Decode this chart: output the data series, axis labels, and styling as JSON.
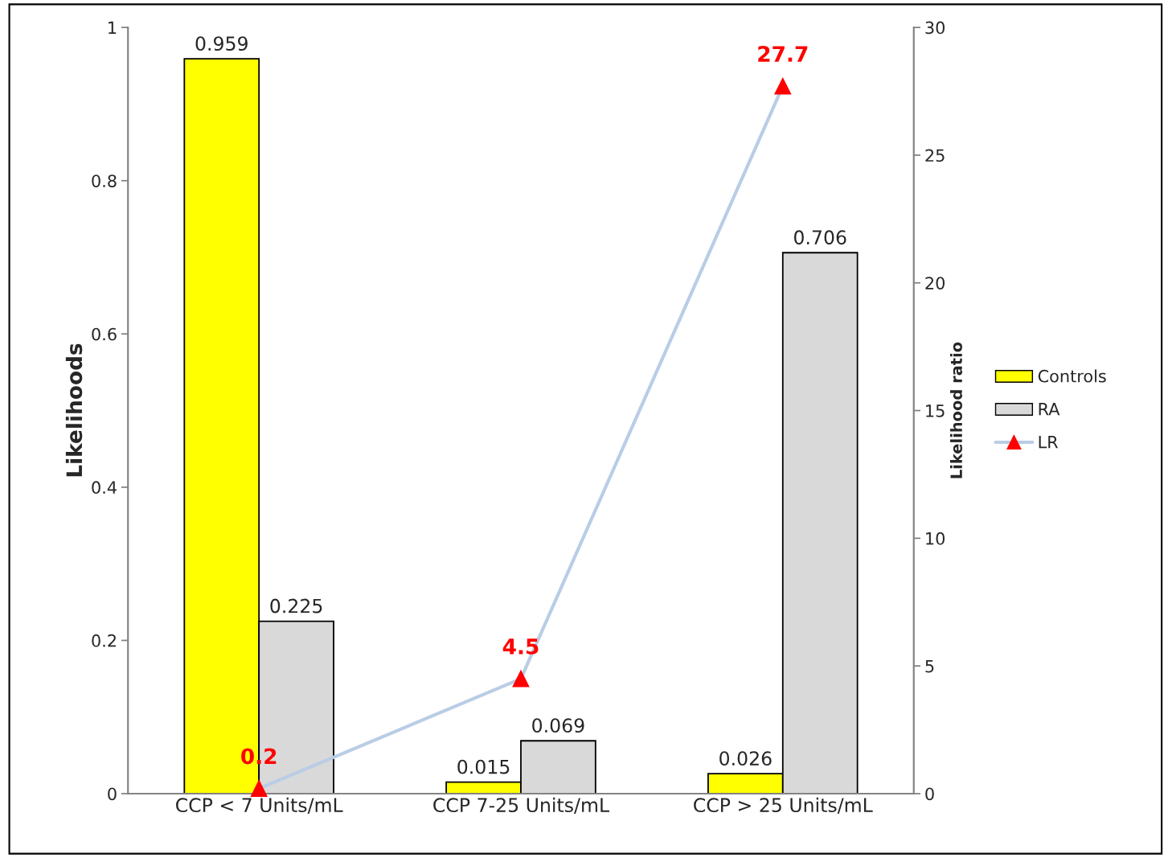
{
  "chart_data": {
    "type": "bar",
    "ylabel": "Likelihoods",
    "y2label": "Likelihood ratio",
    "categories": [
      "CCP < 7 Units/mL",
      "CCP 7-25 Units/mL",
      "CCP > 25 Units/mL"
    ],
    "series": [
      {
        "name": "Controls",
        "color": "#ffff00",
        "values": [
          0.959,
          0.015,
          0.026
        ]
      },
      {
        "name": "RA",
        "color": "#d9d9d9",
        "values": [
          0.225,
          0.069,
          0.706
        ]
      },
      {
        "name": "LR",
        "type": "line",
        "axis": "y2",
        "color": "#b9cde5",
        "colors": [
          "#ff0000",
          "#ff0000",
          "#ff0000"
        ],
        "marker": "triangle",
        "values": [
          0.2,
          4.5,
          27.7
        ]
      }
    ],
    "ylim": [
      0,
      1
    ],
    "yticks": [
      0,
      0.2,
      0.4,
      0.6,
      0.8,
      1
    ],
    "y2lim": [
      0,
      30
    ],
    "y2ticks": [
      0,
      5,
      10,
      15,
      20,
      25,
      30
    ],
    "data_labels": true,
    "legend": "right",
    "grid": false
  }
}
